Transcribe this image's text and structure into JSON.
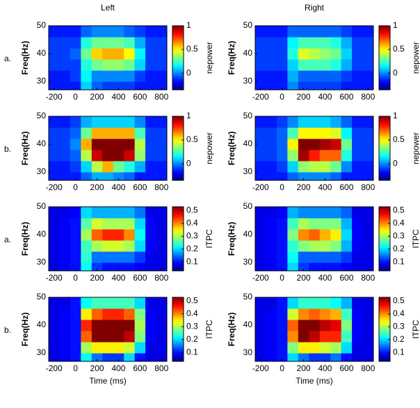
{
  "column_titles": [
    "Left",
    "Right"
  ],
  "chart_data": [
    {
      "type": "heatmap",
      "label": "a.",
      "ylabel": "Freq(Hz)",
      "x": [
        -200,
        -100,
        0,
        100,
        200,
        300,
        400,
        500,
        600,
        700,
        800
      ],
      "y": [
        28,
        32,
        36,
        40,
        44,
        48
      ],
      "xlim": [
        -250,
        850
      ],
      "ylim": [
        27,
        50
      ],
      "xticks": [
        -200,
        0,
        200,
        400,
        600,
        800
      ],
      "yticks": [
        30,
        40,
        50
      ],
      "colorbar": {
        "label": "nepower",
        "lim": [
          -0.35,
          1
        ],
        "ticks": [
          0,
          0.5,
          1
        ]
      },
      "z": [
        [
          -0.15,
          -0.15,
          -0.15,
          0.1,
          -0.05,
          -0.1,
          -0.1,
          -0.1,
          -0.15,
          -0.15,
          -0.15
        ],
        [
          -0.15,
          -0.15,
          -0.1,
          0.15,
          0,
          0,
          0,
          0,
          -0.1,
          -0.15,
          -0.15
        ],
        [
          -0.1,
          -0.1,
          -0.1,
          0.2,
          0.3,
          0.35,
          0.35,
          0.3,
          0.1,
          -0.1,
          -0.1
        ],
        [
          -0.1,
          -0.1,
          -0.05,
          0.3,
          0.55,
          0.6,
          0.6,
          0.5,
          0.15,
          -0.1,
          -0.1
        ],
        [
          -0.1,
          -0.1,
          -0.1,
          0.2,
          0.3,
          0.3,
          0.3,
          0.25,
          0.05,
          -0.1,
          -0.1
        ],
        [
          -0.15,
          -0.15,
          -0.15,
          -0.05,
          0,
          0,
          0,
          -0.05,
          -0.1,
          -0.15,
          -0.15
        ]
      ]
    },
    {
      "type": "heatmap",
      "ylabel": "Freq(Hz)",
      "x": [
        -200,
        -100,
        0,
        100,
        200,
        300,
        400,
        500,
        600,
        700,
        800
      ],
      "y": [
        28,
        32,
        36,
        40,
        44,
        48
      ],
      "xlim": [
        -250,
        850
      ],
      "ylim": [
        27,
        50
      ],
      "xticks": [
        -200,
        0,
        200,
        400,
        600,
        800
      ],
      "yticks": [
        30,
        40,
        50
      ],
      "colorbar": {
        "label": "nepower",
        "lim": [
          -0.35,
          1
        ],
        "ticks": [
          0,
          0.5,
          1
        ]
      },
      "z": [
        [
          -0.15,
          -0.15,
          -0.15,
          0,
          -0.1,
          -0.1,
          -0.1,
          -0.1,
          -0.15,
          -0.15,
          -0.15
        ],
        [
          -0.15,
          -0.15,
          -0.15,
          0.05,
          -0.05,
          -0.05,
          -0.05,
          -0.05,
          -0.1,
          -0.15,
          -0.15
        ],
        [
          -0.1,
          -0.1,
          -0.1,
          0.1,
          0.25,
          0.25,
          0.25,
          0.2,
          0.05,
          -0.1,
          -0.1
        ],
        [
          -0.1,
          -0.1,
          -0.1,
          0.2,
          0.45,
          0.4,
          0.35,
          0.3,
          0.1,
          -0.1,
          -0.1
        ],
        [
          -0.1,
          -0.1,
          -0.1,
          0.15,
          0.25,
          0.25,
          0.25,
          0.2,
          0.05,
          -0.1,
          -0.1
        ],
        [
          -0.15,
          -0.15,
          -0.15,
          -0.05,
          -0.05,
          -0.05,
          -0.05,
          -0.05,
          -0.1,
          -0.15,
          -0.15
        ]
      ]
    },
    {
      "type": "heatmap",
      "label": "b.",
      "ylabel": "Freq(Hz)",
      "x": [
        -200,
        -100,
        0,
        100,
        200,
        300,
        400,
        500,
        600,
        700,
        800
      ],
      "y": [
        28,
        32,
        36,
        40,
        44,
        48
      ],
      "xlim": [
        -250,
        850
      ],
      "ylim": [
        27,
        50
      ],
      "xticks": [
        -200,
        0,
        200,
        400,
        600,
        800
      ],
      "yticks": [
        30,
        40,
        50
      ],
      "colorbar": {
        "label": "nepower",
        "lim": [
          -0.35,
          1
        ],
        "ticks": [
          0,
          0.5,
          1
        ]
      },
      "z": [
        [
          -0.15,
          -0.15,
          -0.15,
          -0.05,
          0.05,
          0.05,
          0,
          -0.05,
          -0.15,
          -0.15,
          -0.15
        ],
        [
          -0.15,
          -0.15,
          -0.1,
          0.1,
          0.4,
          0.6,
          0.3,
          0.2,
          0.05,
          -0.15,
          -0.15
        ],
        [
          -0.1,
          -0.1,
          -0.05,
          0.4,
          0.9,
          1,
          1,
          0.9,
          0.35,
          -0.1,
          -0.1
        ],
        [
          -0.1,
          -0.1,
          0,
          0.6,
          1,
          1,
          1,
          1,
          0.4,
          -0.1,
          -0.1
        ],
        [
          -0.1,
          -0.1,
          -0.05,
          0.3,
          0.6,
          0.6,
          0.6,
          0.6,
          0.25,
          -0.1,
          -0.1
        ],
        [
          -0.15,
          -0.15,
          -0.1,
          0.05,
          0.1,
          0.1,
          0.1,
          0.1,
          0,
          -0.15,
          -0.15
        ]
      ]
    },
    {
      "type": "heatmap",
      "ylabel": "Freq(Hz)",
      "x": [
        -200,
        -100,
        0,
        100,
        200,
        300,
        400,
        500,
        600,
        700,
        800
      ],
      "y": [
        28,
        32,
        36,
        40,
        44,
        48
      ],
      "xlim": [
        -250,
        850
      ],
      "ylim": [
        27,
        50
      ],
      "xticks": [
        -200,
        0,
        200,
        400,
        600,
        800
      ],
      "yticks": [
        30,
        40,
        50
      ],
      "colorbar": {
        "label": "nepower",
        "lim": [
          -0.35,
          1
        ],
        "ticks": [
          0,
          0.5,
          1
        ]
      },
      "z": [
        [
          -0.15,
          -0.15,
          -0.15,
          -0.05,
          0,
          0,
          0,
          -0.05,
          -0.15,
          -0.15,
          -0.15
        ],
        [
          -0.15,
          -0.15,
          -0.1,
          0.1,
          0.35,
          0.4,
          0.4,
          0.3,
          0,
          -0.15,
          -0.15
        ],
        [
          -0.1,
          -0.1,
          -0.05,
          0.35,
          0.95,
          0.8,
          0.7,
          0.7,
          0.2,
          -0.1,
          -0.1
        ],
        [
          -0.1,
          -0.1,
          -0.05,
          0.5,
          1,
          1,
          0.95,
          0.9,
          0.3,
          -0.1,
          -0.1
        ],
        [
          -0.1,
          -0.1,
          -0.05,
          0.25,
          0.5,
          0.5,
          0.5,
          0.45,
          0.15,
          -0.1,
          -0.1
        ],
        [
          -0.15,
          -0.15,
          -0.1,
          0,
          0.1,
          0.1,
          0.1,
          0.05,
          -0.05,
          -0.15,
          -0.15
        ]
      ]
    },
    {
      "type": "heatmap",
      "label": "a.",
      "ylabel": "Freq(Hz)",
      "x": [
        -200,
        -100,
        0,
        100,
        200,
        300,
        400,
        500,
        600,
        700,
        800
      ],
      "y": [
        28,
        32,
        36,
        40,
        44,
        48
      ],
      "xlim": [
        -250,
        850
      ],
      "ylim": [
        27,
        50
      ],
      "xticks": [
        -200,
        0,
        200,
        400,
        600,
        800
      ],
      "yticks": [
        30,
        40,
        50
      ],
      "colorbar": {
        "label": "ITPC",
        "lim": [
          0.03,
          0.53
        ],
        "ticks": [
          0.1,
          0.2,
          0.3,
          0.4,
          0.5
        ]
      },
      "z": [
        [
          0.08,
          0.09,
          0.1,
          0.22,
          0.12,
          0.1,
          0.1,
          0.1,
          0.09,
          0.08,
          0.08
        ],
        [
          0.08,
          0.09,
          0.1,
          0.24,
          0.15,
          0.15,
          0.15,
          0.15,
          0.12,
          0.08,
          0.08
        ],
        [
          0.08,
          0.09,
          0.1,
          0.25,
          0.3,
          0.32,
          0.32,
          0.3,
          0.2,
          0.09,
          0.08
        ],
        [
          0.08,
          0.09,
          0.1,
          0.3,
          0.42,
          0.45,
          0.45,
          0.4,
          0.22,
          0.09,
          0.08
        ],
        [
          0.08,
          0.09,
          0.1,
          0.26,
          0.32,
          0.3,
          0.3,
          0.3,
          0.2,
          0.09,
          0.08
        ],
        [
          0.08,
          0.08,
          0.09,
          0.2,
          0.18,
          0.18,
          0.18,
          0.18,
          0.15,
          0.08,
          0.08
        ]
      ]
    },
    {
      "type": "heatmap",
      "ylabel": "Freq(Hz)",
      "x": [
        -200,
        -100,
        0,
        100,
        200,
        300,
        400,
        500,
        600,
        700,
        800
      ],
      "y": [
        28,
        32,
        36,
        40,
        44,
        48
      ],
      "xlim": [
        -250,
        850
      ],
      "ylim": [
        27,
        50
      ],
      "xticks": [
        -200,
        0,
        200,
        400,
        600,
        800
      ],
      "yticks": [
        30,
        40,
        50
      ],
      "colorbar": {
        "label": "ITPC",
        "lim": [
          0.03,
          0.53
        ],
        "ticks": [
          0.1,
          0.2,
          0.3,
          0.4,
          0.5
        ]
      },
      "z": [
        [
          0.08,
          0.09,
          0.1,
          0.2,
          0.12,
          0.1,
          0.1,
          0.1,
          0.09,
          0.08,
          0.08
        ],
        [
          0.08,
          0.09,
          0.1,
          0.22,
          0.14,
          0.14,
          0.14,
          0.14,
          0.12,
          0.08,
          0.08
        ],
        [
          0.08,
          0.09,
          0.1,
          0.24,
          0.28,
          0.3,
          0.3,
          0.28,
          0.18,
          0.09,
          0.08
        ],
        [
          0.08,
          0.09,
          0.1,
          0.28,
          0.4,
          0.42,
          0.38,
          0.35,
          0.2,
          0.09,
          0.08
        ],
        [
          0.08,
          0.09,
          0.1,
          0.25,
          0.3,
          0.28,
          0.28,
          0.28,
          0.18,
          0.09,
          0.08
        ],
        [
          0.08,
          0.08,
          0.09,
          0.18,
          0.16,
          0.16,
          0.16,
          0.16,
          0.14,
          0.08,
          0.08
        ]
      ]
    },
    {
      "type": "heatmap",
      "label": "b.",
      "ylabel": "Freq(Hz)",
      "xlabel": "Time (ms)",
      "x": [
        -200,
        -100,
        0,
        100,
        200,
        300,
        400,
        500,
        600,
        700,
        800
      ],
      "y": [
        28,
        32,
        36,
        40,
        44,
        48
      ],
      "xlim": [
        -250,
        850
      ],
      "ylim": [
        27,
        50
      ],
      "xticks": [
        -200,
        0,
        200,
        400,
        600,
        800
      ],
      "yticks": [
        30,
        40,
        50
      ],
      "colorbar": {
        "label": "ITPC",
        "lim": [
          0.03,
          0.53
        ],
        "ticks": [
          0.1,
          0.2,
          0.3,
          0.4,
          0.5
        ]
      },
      "z": [
        [
          0.08,
          0.09,
          0.1,
          0.22,
          0.15,
          0.12,
          0.12,
          0.2,
          0.1,
          0.08,
          0.08
        ],
        [
          0.08,
          0.09,
          0.1,
          0.3,
          0.35,
          0.35,
          0.35,
          0.32,
          0.2,
          0.08,
          0.08
        ],
        [
          0.08,
          0.09,
          0.1,
          0.42,
          0.53,
          0.53,
          0.53,
          0.5,
          0.28,
          0.09,
          0.08
        ],
        [
          0.08,
          0.09,
          0.1,
          0.45,
          0.53,
          0.53,
          0.53,
          0.53,
          0.3,
          0.09,
          0.08
        ],
        [
          0.08,
          0.09,
          0.1,
          0.35,
          0.42,
          0.45,
          0.45,
          0.42,
          0.28,
          0.09,
          0.08
        ],
        [
          0.08,
          0.08,
          0.1,
          0.22,
          0.25,
          0.25,
          0.25,
          0.25,
          0.2,
          0.08,
          0.08
        ]
      ]
    },
    {
      "type": "heatmap",
      "ylabel": "Freq(Hz)",
      "xlabel": "Time (ms)",
      "x": [
        -200,
        -100,
        0,
        100,
        200,
        300,
        400,
        500,
        600,
        700,
        800
      ],
      "y": [
        28,
        32,
        36,
        40,
        44,
        48
      ],
      "xlim": [
        -250,
        850
      ],
      "ylim": [
        27,
        50
      ],
      "xticks": [
        -200,
        0,
        200,
        400,
        600,
        800
      ],
      "yticks": [
        30,
        40,
        50
      ],
      "colorbar": {
        "label": "ITPC",
        "lim": [
          0.03,
          0.53
        ],
        "ticks": [
          0.1,
          0.2,
          0.3,
          0.4,
          0.5
        ]
      },
      "z": [
        [
          0.08,
          0.09,
          0.1,
          0.2,
          0.15,
          0.12,
          0.12,
          0.15,
          0.1,
          0.08,
          0.08
        ],
        [
          0.08,
          0.09,
          0.1,
          0.28,
          0.35,
          0.35,
          0.32,
          0.3,
          0.2,
          0.08,
          0.08
        ],
        [
          0.08,
          0.09,
          0.1,
          0.4,
          0.53,
          0.5,
          0.45,
          0.45,
          0.25,
          0.09,
          0.08
        ],
        [
          0.08,
          0.09,
          0.1,
          0.42,
          0.53,
          0.53,
          0.5,
          0.48,
          0.28,
          0.09,
          0.08
        ],
        [
          0.08,
          0.09,
          0.1,
          0.32,
          0.4,
          0.42,
          0.4,
          0.38,
          0.25,
          0.09,
          0.08
        ],
        [
          0.08,
          0.08,
          0.1,
          0.2,
          0.24,
          0.24,
          0.24,
          0.22,
          0.18,
          0.08,
          0.08
        ]
      ]
    }
  ]
}
